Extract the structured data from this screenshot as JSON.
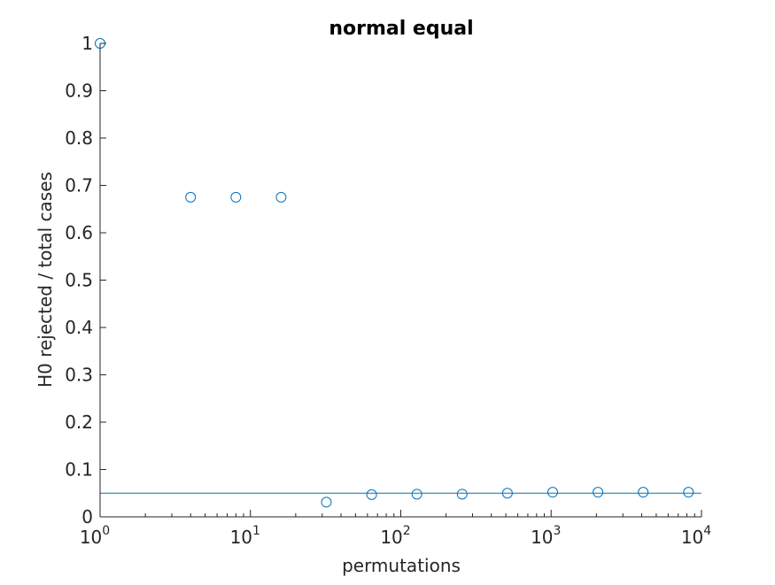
{
  "chart_data": {
    "type": "scatter",
    "title": "normal equal",
    "xlabel": "permutations",
    "ylabel": "H0 rejected / total cases",
    "xscale": "log",
    "xlim": [
      1,
      10000
    ],
    "ylim": [
      0,
      1
    ],
    "grid": false,
    "marker": "circle-open",
    "color": "#0072BD",
    "x_ticks": [
      {
        "base": "10",
        "exp": "0",
        "value": 1
      },
      {
        "base": "10",
        "exp": "1",
        "value": 10
      },
      {
        "base": "10",
        "exp": "2",
        "value": 100
      },
      {
        "base": "10",
        "exp": "3",
        "value": 1000
      },
      {
        "base": "10",
        "exp": "4",
        "value": 10000
      }
    ],
    "y_ticks": [
      "0",
      "0.1",
      "0.2",
      "0.3",
      "0.4",
      "0.5",
      "0.6",
      "0.7",
      "0.8",
      "0.9",
      "1"
    ],
    "series": [
      {
        "x": [
          1,
          4,
          8,
          16,
          32,
          64,
          128,
          256,
          512,
          1024,
          2048,
          4096,
          8192
        ],
        "y": [
          1.0,
          0.675,
          0.675,
          0.675,
          0.031,
          0.047,
          0.048,
          0.048,
          0.05,
          0.052,
          0.052,
          0.052,
          0.052
        ]
      }
    ],
    "reference_line": {
      "y": 0.05
    }
  }
}
